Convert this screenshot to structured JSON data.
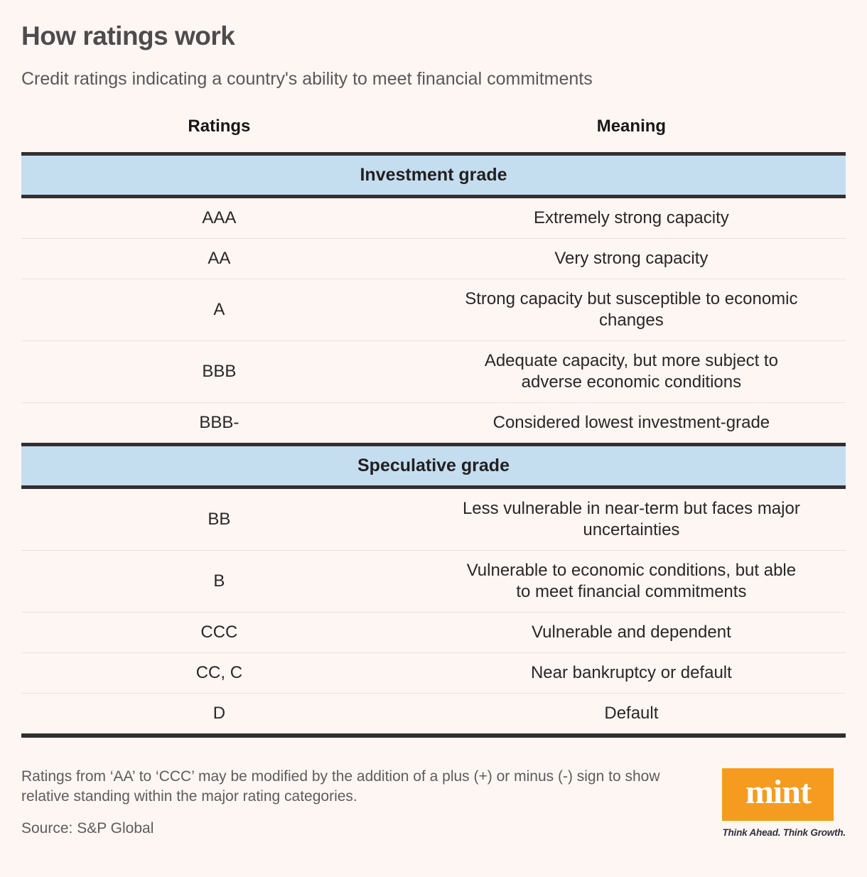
{
  "page": {
    "title": "How ratings work",
    "subtitle": "Credit ratings indicating a country's ability to meet financial commitments"
  },
  "table": {
    "columns": [
      "Ratings",
      "Meaning"
    ],
    "sections": [
      {
        "header": "Investment grade",
        "rows": [
          {
            "rating": "AAA",
            "meaning": "Extremely strong capacity"
          },
          {
            "rating": "AA",
            "meaning": "Very strong capacity"
          },
          {
            "rating": "A",
            "meaning": "Strong capacity but susceptible to economic\nchanges"
          },
          {
            "rating": "BBB",
            "meaning": "Adequate capacity, but more subject to\nadverse economic conditions"
          },
          {
            "rating": "BBB-",
            "meaning": "Considered lowest investment-grade"
          }
        ]
      },
      {
        "header": "Speculative grade",
        "rows": [
          {
            "rating": "BB",
            "meaning": "Less vulnerable in near-term but faces major\nuncertainties"
          },
          {
            "rating": "B",
            "meaning": "Vulnerable to economic conditions, but able\nto meet financial commitments"
          },
          {
            "rating": "CCC",
            "meaning": "Vulnerable and dependent"
          },
          {
            "rating": "CC, C",
            "meaning": "Near bankruptcy or default"
          },
          {
            "rating": "D",
            "meaning": "Default"
          }
        ]
      }
    ]
  },
  "footer": {
    "note": "Ratings from ‘AA’ to ‘CCC’ may be modified by the addition of a plus (+) or minus (-) sign to show\nrelative standing within the major rating categories.",
    "source": "Source: S&P Global"
  },
  "branding": {
    "logo_text": "mint",
    "tagline": "Think Ahead. Think Growth."
  },
  "colors": {
    "background": "#fdf6f3",
    "band_blue": "#c4def0",
    "rule_dark": "#332e30",
    "brand_orange": "#f59c20"
  },
  "chart_data": {
    "type": "table",
    "title": "How ratings work",
    "subtitle": "Credit ratings indicating a country's ability to meet financial commitments",
    "columns": [
      "Ratings",
      "Meaning"
    ],
    "rows": [
      {
        "section": "Investment grade",
        "rating": "AAA",
        "meaning": "Extremely strong capacity"
      },
      {
        "section": "Investment grade",
        "rating": "AA",
        "meaning": "Very strong capacity"
      },
      {
        "section": "Investment grade",
        "rating": "A",
        "meaning": "Strong capacity but susceptible to economic changes"
      },
      {
        "section": "Investment grade",
        "rating": "BBB",
        "meaning": "Adequate capacity, but more subject to adverse economic conditions"
      },
      {
        "section": "Investment grade",
        "rating": "BBB-",
        "meaning": "Considered lowest investment-grade"
      },
      {
        "section": "Speculative grade",
        "rating": "BB",
        "meaning": "Less vulnerable in near-term but faces major uncertainties"
      },
      {
        "section": "Speculative grade",
        "rating": "B",
        "meaning": "Vulnerable to economic conditions, but able to meet financial commitments"
      },
      {
        "section": "Speculative grade",
        "rating": "CCC",
        "meaning": "Vulnerable and dependent"
      },
      {
        "section": "Speculative grade",
        "rating": "CC, C",
        "meaning": "Near bankruptcy or default"
      },
      {
        "section": "Speculative grade",
        "rating": "D",
        "meaning": "Default"
      }
    ],
    "footnote": "Ratings from ‘AA’ to ‘CCC’ may be modified by the addition of a plus (+) or minus (-) sign to show relative standing within the major rating categories.",
    "source": "S&P Global"
  }
}
